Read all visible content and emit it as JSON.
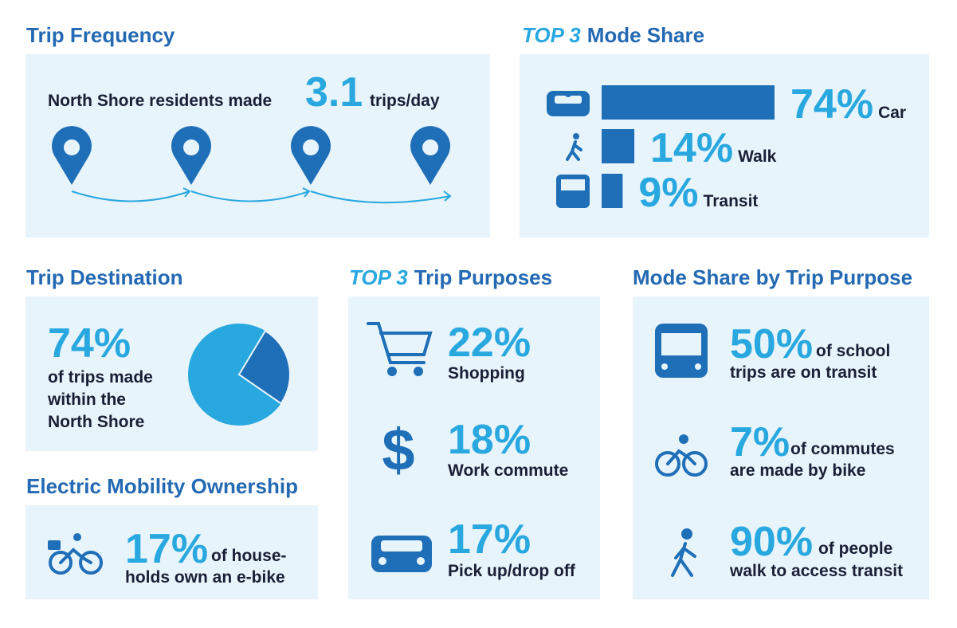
{
  "trip_frequency": {
    "title": "Trip Frequency",
    "text_before": "North Shore residents made",
    "value": "3.1",
    "text_after": "trips/day"
  },
  "mode_share": {
    "title_em": "TOP 3",
    "title": "Mode Share",
    "categories": [
      "Car",
      "Walk",
      "Transit"
    ],
    "values": [
      74,
      14,
      9
    ],
    "value_labels": [
      "74%",
      "14%",
      "9%"
    ],
    "color": "#1f6fb8"
  },
  "trip_destination": {
    "title": "Trip Destination",
    "value": 74,
    "value_label": "74%",
    "lines": [
      "of trips made",
      "within the",
      "North Shore"
    ]
  },
  "electric_mobility": {
    "title": "Electric Mobility Ownership",
    "value": "17%",
    "text_inline": "of house-",
    "text_line2": "holds own an e-bike"
  },
  "trip_purposes": {
    "title_em": "TOP 3",
    "title": "Trip Purposes",
    "items": [
      {
        "value": "22%",
        "label": "Shopping"
      },
      {
        "icon": "$",
        "value": "18%",
        "label": "Work commute"
      },
      {
        "value": "17%",
        "label": "Pick up/drop off"
      }
    ]
  },
  "mode_share_by_purpose": {
    "title": "Mode Share by Trip Purpose",
    "items": [
      {
        "value": "50%",
        "text_inline": "of school",
        "text_line2": "trips are on transit"
      },
      {
        "value": "7%",
        "text_inline": "of commutes",
        "text_line2": "are made by bike"
      },
      {
        "value": "90%",
        "text_inline": "of people",
        "text_line2": "walk to access transit"
      }
    ]
  }
}
